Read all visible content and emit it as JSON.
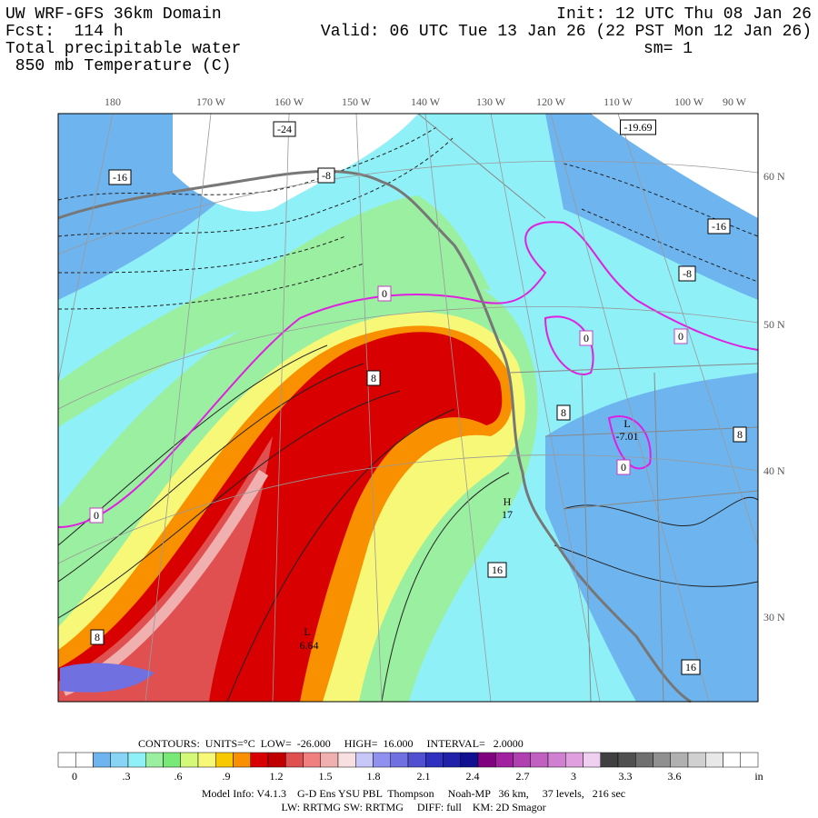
{
  "header": {
    "left_lines": [
      "UW WRF-GFS 36km Domain",
      "Fcst:  114 h",
      "Total precipitable water",
      " 850 mb Temperature (C)"
    ],
    "right_lines": [
      "Init: 12 UTC Thu 08 Jan 26",
      "Valid: 06 UTC Tue 13 Jan 26 (22 PST Mon 12 Jan 26)",
      "sm= 1"
    ]
  },
  "map": {
    "lon_labels": [
      "180",
      "170 W",
      "160 W",
      "150 W",
      "140 W",
      "130 W",
      "120 W",
      "110 W",
      "100 W",
      "90 W"
    ],
    "lat_labels": [
      "60 N",
      "50 N",
      "40 N",
      "30 N"
    ],
    "contour_labels": [
      "-24",
      "-19.69",
      "-16",
      "-8",
      "-16",
      "-8",
      "0",
      "0",
      "0",
      "0",
      "0",
      "8",
      "8",
      "8",
      "8",
      "L",
      "-7.01",
      "H",
      "17",
      "16",
      "L",
      "6.64",
      "16"
    ]
  },
  "legend": {
    "contours_line": "CONTOURS:  UNITS=°C  LOW=  -26.000     HIGH=  16.000     INTERVAL=   2.0000",
    "tick_labels": [
      "0",
      ".3",
      ".6",
      ".9",
      "1.2",
      "1.5",
      "1.8",
      "2.1",
      "2.4",
      "2.7",
      "3",
      "3.3",
      "3.6",
      "in"
    ],
    "colors": [
      "#ffffff",
      "#ffffff",
      "#6eb5f0",
      "#89d3f5",
      "#90f0f8",
      "#9af0a0",
      "#78e878",
      "#d4f878",
      "#f8f878",
      "#f8c800",
      "#f89000",
      "#d80000",
      "#c00000",
      "#e05050",
      "#f08080",
      "#f0b0b0",
      "#f8e0e0",
      "#c8c8f8",
      "#9090f0",
      "#7070e0",
      "#5050d0",
      "#3030c0",
      "#2020a8",
      "#101090",
      "#800080",
      "#a020a0",
      "#b040b0",
      "#c060c0",
      "#d080d0",
      "#e0a0e0",
      "#f0d0f0",
      "#404040",
      "#505050",
      "#707070",
      "#909090",
      "#b0b0b0",
      "#d0d0d0",
      "#e8e8e8",
      "#ffffff",
      "#ffffff"
    ]
  },
  "footer": {
    "lines": [
      "Model Info: V4.1.3    G-D Ens YSU PBL  Thompson     Noah-MP   36 km,     37 levels,   216 sec",
      "LW: RRTMG SW: RRTMG     DIFF: full    KM: 2D Smagor"
    ]
  }
}
